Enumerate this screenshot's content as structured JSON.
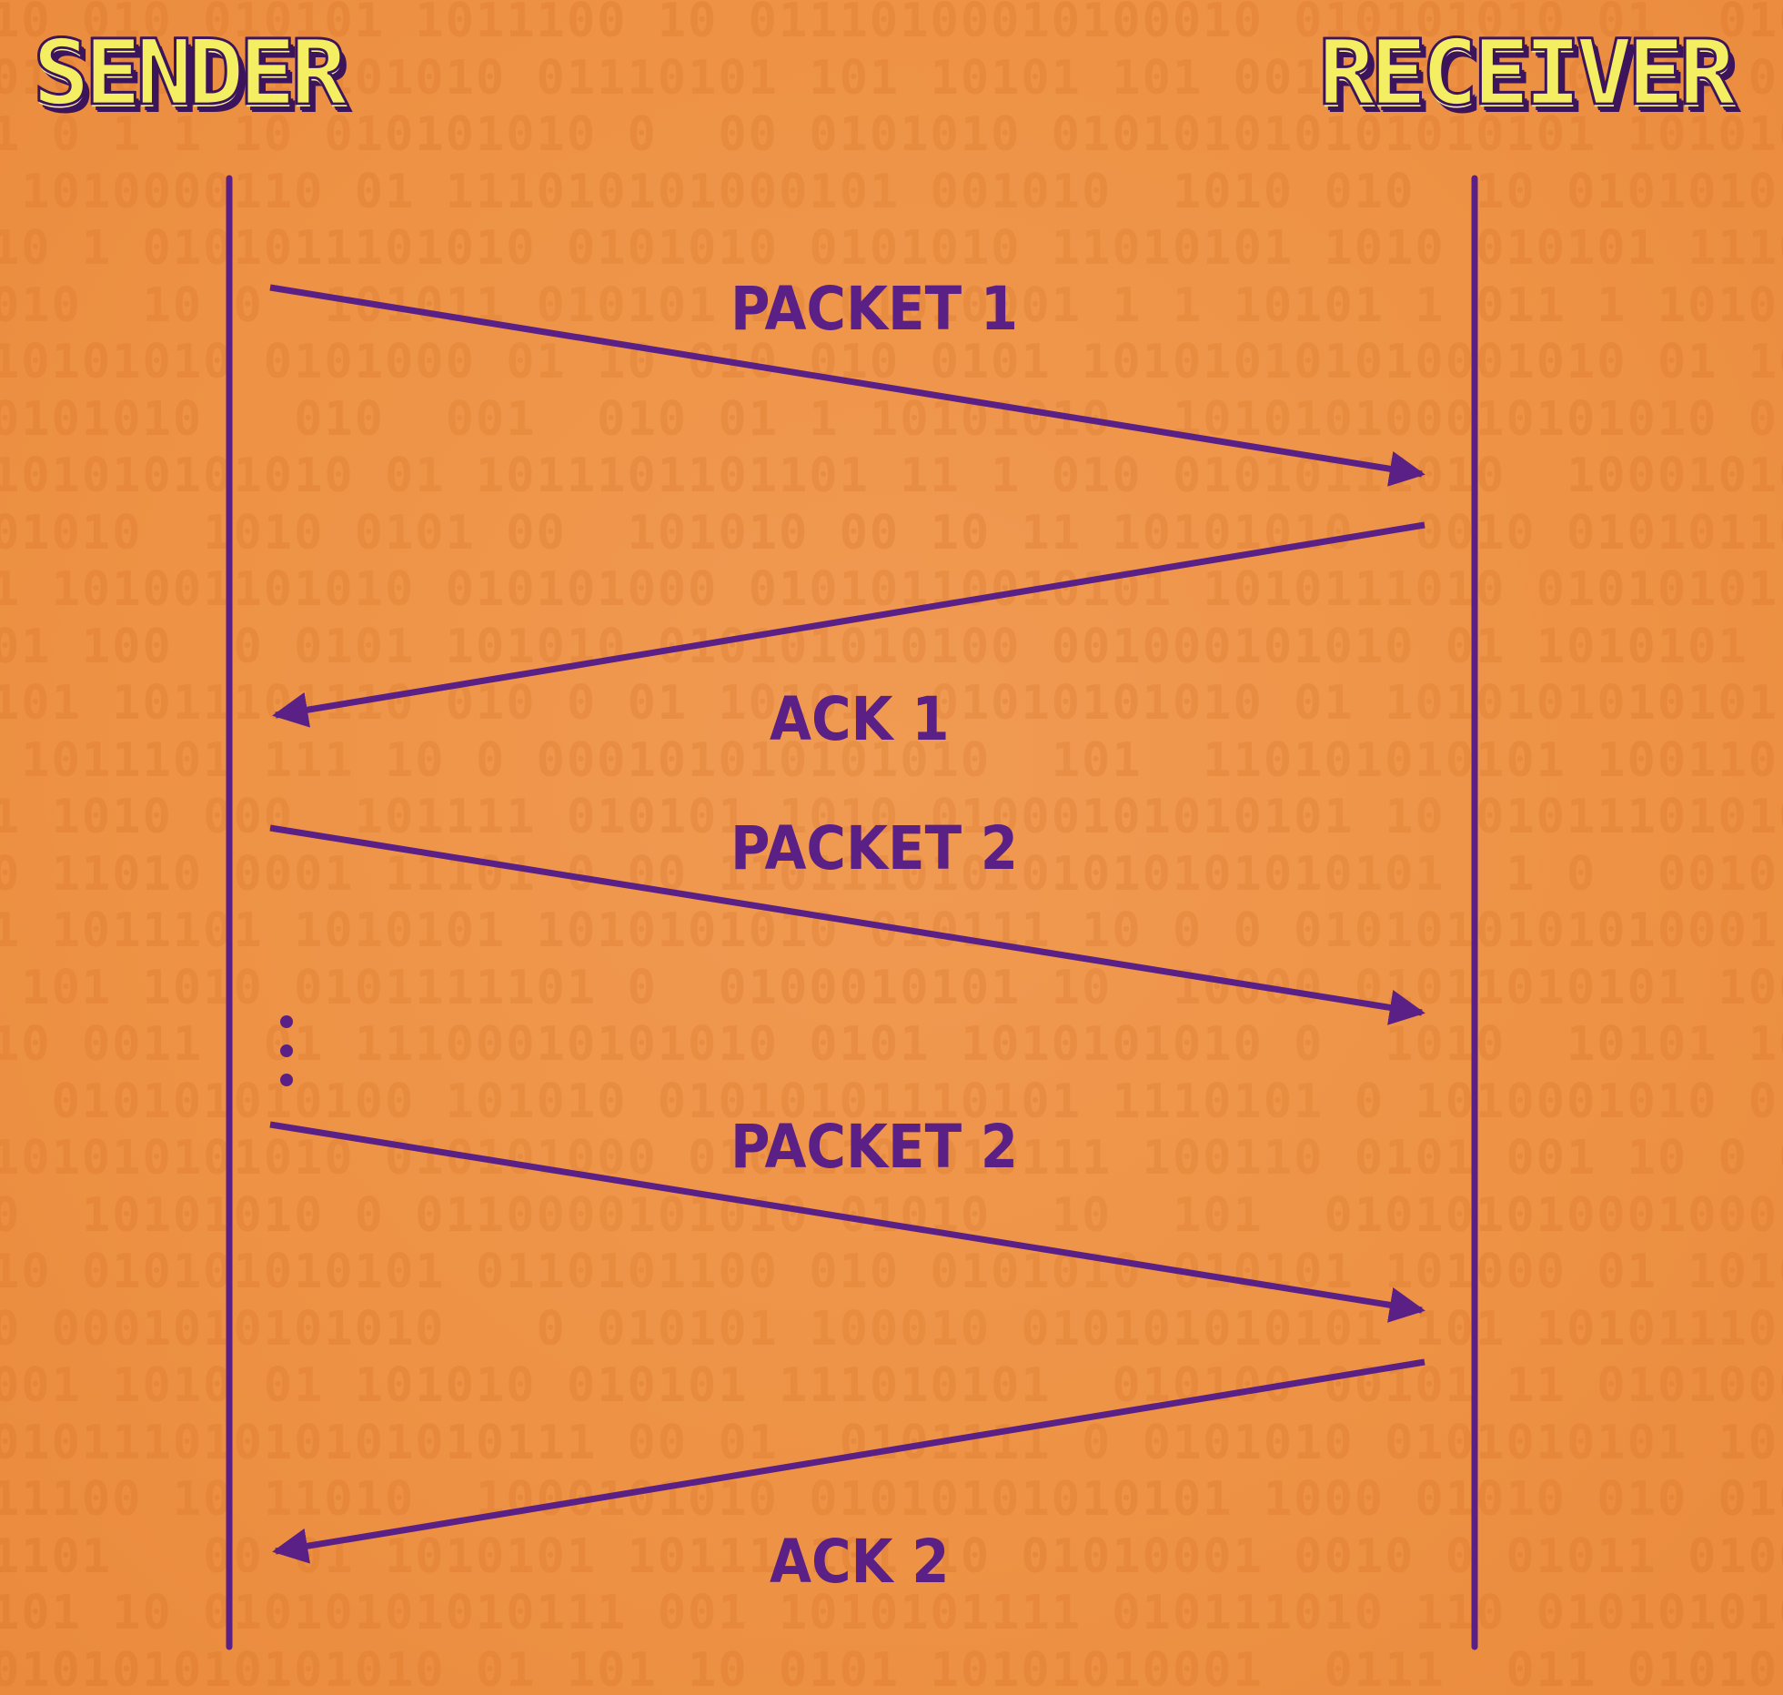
{
  "roles": {
    "sender": "SENDER",
    "receiver": "RECEIVER"
  },
  "messages": [
    {
      "from": "sender",
      "to": "receiver",
      "label": "PACKET 1"
    },
    {
      "from": "receiver",
      "to": "sender",
      "label": "ACK 1"
    },
    {
      "from": "sender",
      "to": "receiver",
      "label": "PACKET 2"
    },
    {
      "from": "sender",
      "to": "receiver",
      "label": "PACKET 2"
    },
    {
      "from": "receiver",
      "to": "sender",
      "label": "ACK 2"
    }
  ],
  "background": "binary digits 0 and 1",
  "colors": {
    "background": "#ee9346",
    "lines": "#5a2085",
    "labels": "#5a2085",
    "title_fill": "#f4ee62",
    "title_outline": "#3c145c"
  }
}
